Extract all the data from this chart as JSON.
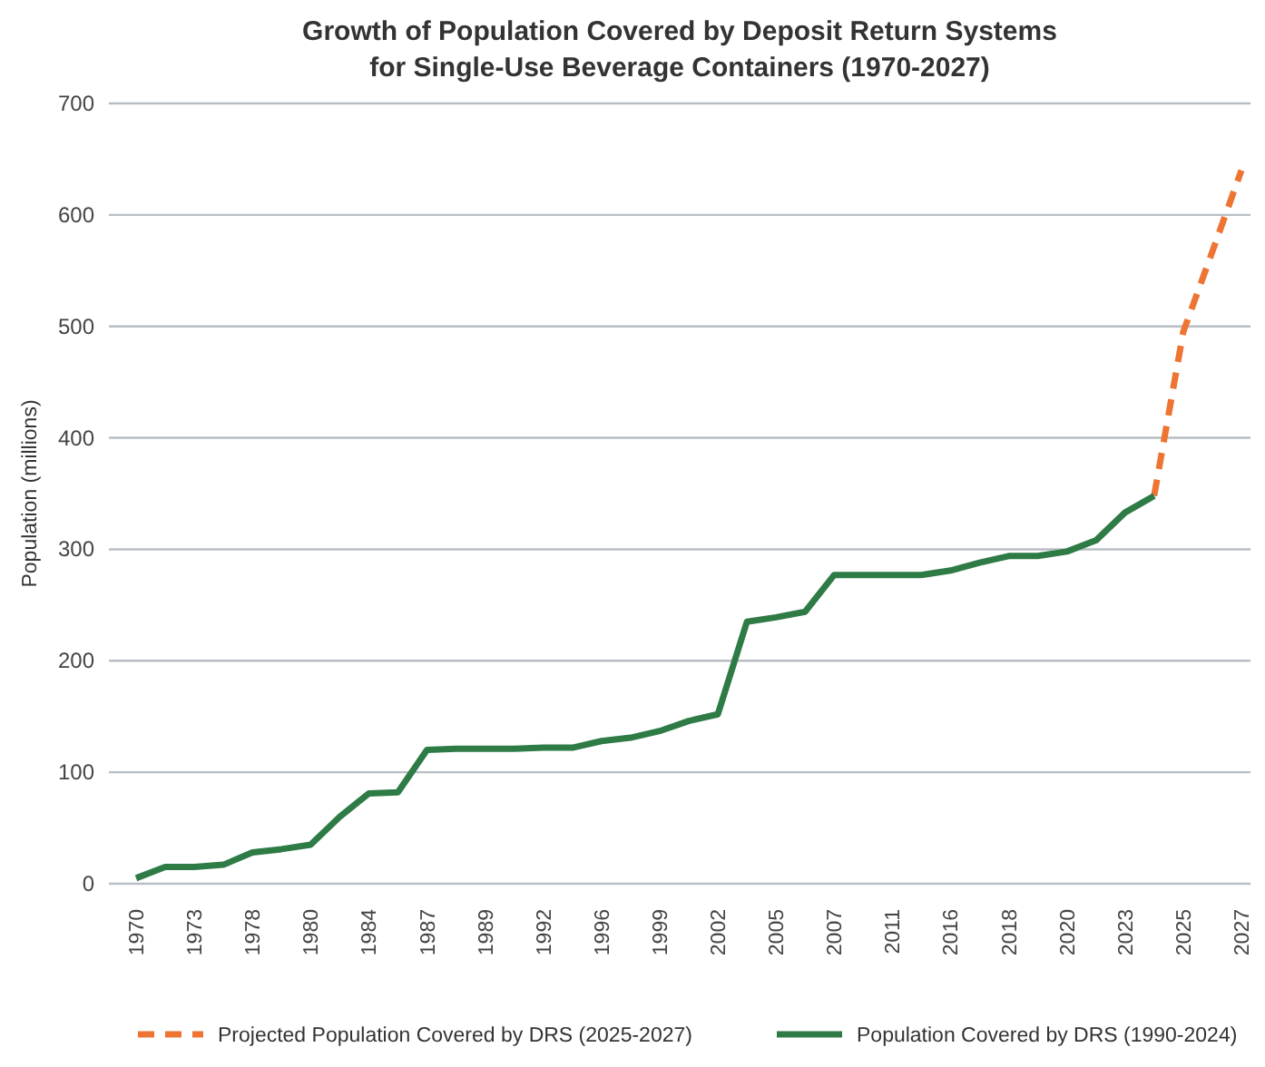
{
  "chart_data": {
    "type": "line",
    "title": "Growth of Population Covered by Deposit Return Systems for Single-Use Beverage Containers (1970-2027)",
    "ylabel": "Population (millions)",
    "categories": [
      "1970",
      null,
      "1973",
      null,
      "1978",
      null,
      "1980",
      null,
      "1984",
      null,
      "1987",
      null,
      "1989",
      null,
      "1992",
      null,
      "1996",
      null,
      "1999",
      null,
      "2002",
      null,
      "2005",
      null,
      "2007",
      null,
      "2011",
      null,
      "2016",
      null,
      "2018",
      null,
      "2020",
      null,
      "2023",
      null,
      "2025",
      null,
      "2027"
    ],
    "series": [
      {
        "name": "Projected Population Covered by DRS (2025-2027)",
        "color": "#ee7433",
        "line_style": "dashed",
        "values": [
          null,
          null,
          null,
          null,
          null,
          null,
          null,
          null,
          null,
          null,
          null,
          null,
          null,
          null,
          null,
          null,
          null,
          null,
          null,
          null,
          null,
          null,
          null,
          null,
          null,
          null,
          null,
          null,
          null,
          null,
          null,
          null,
          null,
          null,
          null,
          348,
          495,
          567,
          640
        ]
      },
      {
        "name": "Population Covered by DRS (1990-2024)",
        "color": "#2e7b46",
        "line_style": "solid",
        "values": [
          5,
          15,
          15,
          17,
          28,
          31,
          35,
          60,
          81,
          82,
          120,
          121,
          121,
          121,
          122,
          122,
          128,
          131,
          137,
          146,
          152,
          235,
          239,
          244,
          277,
          277,
          277,
          277,
          281,
          288,
          294,
          294,
          298,
          308,
          333,
          348,
          null,
          null,
          null
        ]
      }
    ],
    "ylim": [
      0,
      700
    ],
    "yticks": [
      0,
      100,
      200,
      300,
      400,
      500,
      600,
      700
    ],
    "grid": "y",
    "legend": "bottom"
  }
}
